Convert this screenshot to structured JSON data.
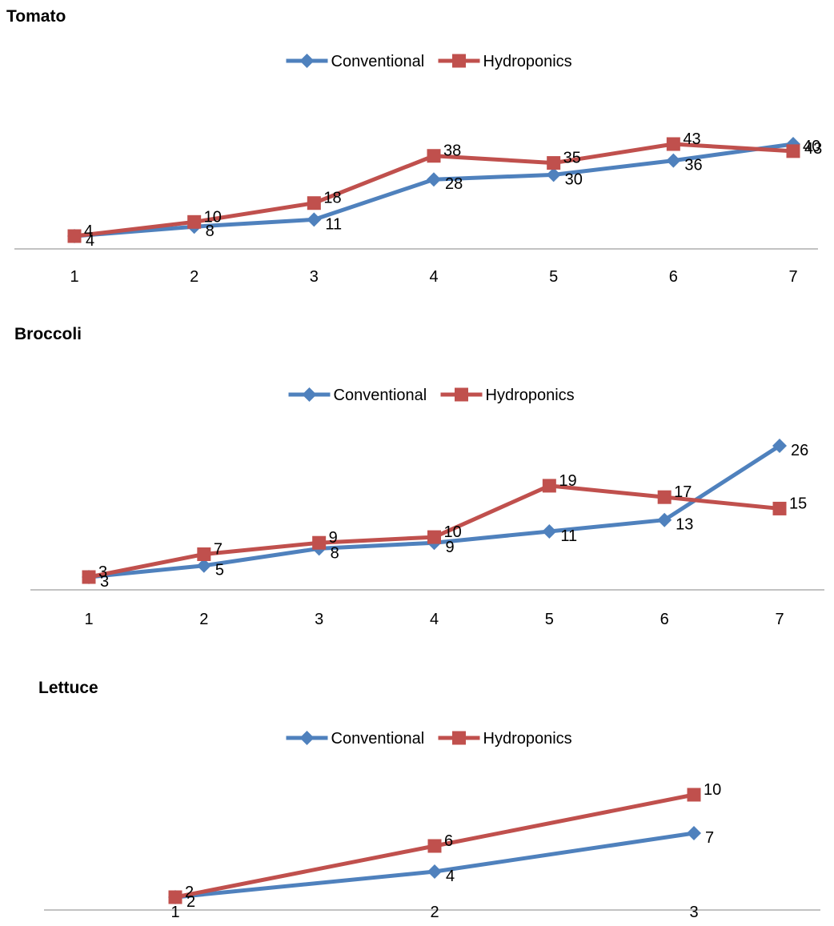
{
  "chart_data": [
    {
      "type": "line",
      "title": "Tomato",
      "categories": [
        "1",
        "2",
        "3",
        "4",
        "5",
        "6",
        "7"
      ],
      "series": [
        {
          "name": "Conventional",
          "values": [
            4,
            8,
            11,
            28,
            30,
            36,
            43
          ],
          "color": "#4F81BD",
          "marker": "diamond"
        },
        {
          "name": "Hydroponics",
          "values": [
            4,
            10,
            18,
            38,
            35,
            43,
            40
          ],
          "color": "#C0504D",
          "marker": "square"
        }
      ],
      "ylim": [
        0,
        43
      ],
      "legend": "top-center",
      "grid": false
    },
    {
      "type": "line",
      "title": "Broccoli",
      "categories": [
        "1",
        "2",
        "3",
        "4",
        "5",
        "6",
        "7"
      ],
      "series": [
        {
          "name": "Conventional",
          "values": [
            3,
            5,
            8,
            9,
            11,
            13,
            26
          ],
          "color": "#4F81BD",
          "marker": "diamond"
        },
        {
          "name": "Hydroponics",
          "values": [
            3,
            7,
            9,
            10,
            19,
            17,
            15
          ],
          "color": "#C0504D",
          "marker": "square"
        }
      ],
      "ylim": [
        0,
        26
      ],
      "legend": "top-center",
      "grid": false
    },
    {
      "type": "line",
      "title": "Lettuce",
      "categories": [
        "1",
        "2",
        "3"
      ],
      "series": [
        {
          "name": "Conventional",
          "values": [
            2,
            4,
            7
          ],
          "color": "#4F81BD",
          "marker": "diamond"
        },
        {
          "name": "Hydroponics",
          "values": [
            2,
            6,
            10
          ],
          "color": "#C0504D",
          "marker": "square"
        }
      ],
      "ylim": [
        0,
        10
      ],
      "legend": "top-center",
      "grid": false
    }
  ]
}
